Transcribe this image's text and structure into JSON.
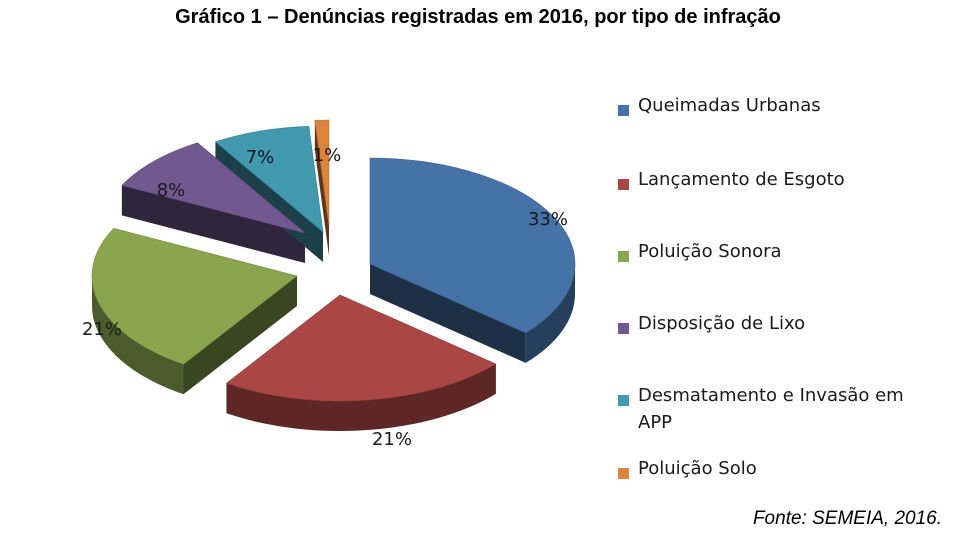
{
  "chart_data": {
    "type": "pie",
    "title": "Gráfico 1 – Denúncias registradas em 2016, por tipo de infração",
    "slices": [
      {
        "label": "Queimadas Urbanas",
        "value": 33,
        "display": "33%",
        "color": "#4572A7"
      },
      {
        "label": "Lançamento de Esgoto",
        "value": 21,
        "display": "21%",
        "color": "#AA4643"
      },
      {
        "label": "Poluição Sonora",
        "value": 21,
        "display": "21%",
        "color": "#89A54E"
      },
      {
        "label": "Disposição de Lixo",
        "value": 8,
        "display": "8%",
        "color": "#71588F"
      },
      {
        "label": "Desmatamento e Invasão em APP",
        "value": 7,
        "display": "7%",
        "color": "#4198AF"
      },
      {
        "label": "Poluição Solo",
        "value": 1,
        "display": "1%",
        "color": "#DB843D"
      }
    ],
    "legend_position": "right",
    "style": "3d-exploded"
  },
  "source": "Fonte: SEMEIA, 2016."
}
